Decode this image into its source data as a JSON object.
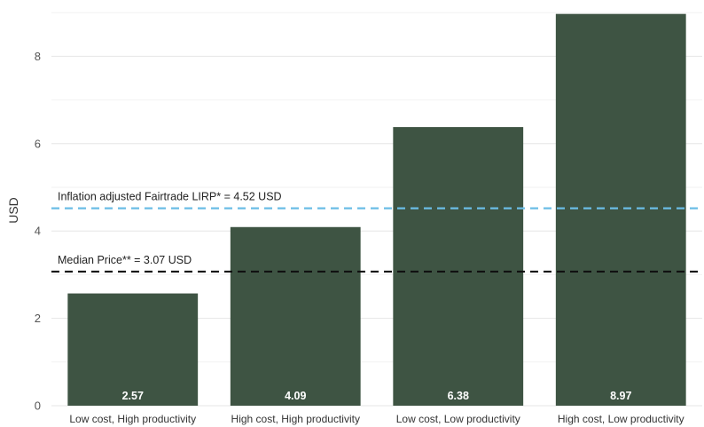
{
  "chart_data": {
    "type": "bar",
    "categories": [
      "Low cost, High productivity",
      "High cost, High productivity",
      "Low cost, Low productivity",
      "High cost, Low productivity"
    ],
    "values": [
      2.57,
      4.09,
      6.38,
      8.97
    ],
    "value_labels": [
      "2.57",
      "4.09",
      "6.38",
      "8.97"
    ],
    "ylabel": "USD",
    "ylim": [
      0,
      9
    ],
    "yticks": [
      0,
      2,
      4,
      6,
      8
    ],
    "ytick_labels": [
      "0",
      "2",
      "4",
      "6",
      "8"
    ],
    "grid": true,
    "bar_color": "#3e5443",
    "reference_lines": [
      {
        "label": "Inflation adjusted Fairtrade LIRP* = 4.52 USD",
        "value": 4.52,
        "color": "#6bbde6",
        "style": "dashed"
      },
      {
        "label": "Median Price** = 3.07 USD",
        "value": 3.07,
        "color": "#111111",
        "style": "dashed"
      }
    ]
  }
}
